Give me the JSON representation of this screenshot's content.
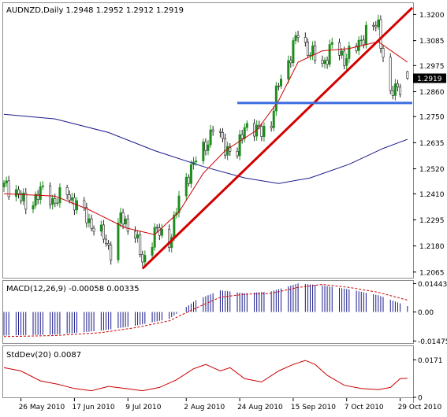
{
  "colors": {
    "frame": "#8c8c8c",
    "bull": "#1e8c1e",
    "bear": "#222222",
    "ma_short": "#cc0000",
    "ma_long": "#1a1a8c",
    "trendline": "#d40000",
    "support": "#3c6ee0",
    "macd_hist": "#1a1a8c",
    "macd_signal": "#cc0000",
    "stddev": "#cc0000",
    "price_box": "#000000",
    "price_box_text": "#ffffff"
  },
  "main_panel": {
    "header": "AUDNZD,Daily  1.2948 1.2952 1.2912 1.2919",
    "current_price": "1.2919",
    "y_ticks": [
      "1.3200",
      "1.3085",
      "1.2975",
      "1.2860",
      "1.2750",
      "1.2635",
      "1.2520",
      "1.2410",
      "1.2295",
      "1.2180",
      "1.2065"
    ]
  },
  "macd_panel": {
    "header": "MACD(12,26,9) -0.00058 0.00335",
    "y_ticks": [
      "0.01443",
      "0.00",
      "-0.01475"
    ]
  },
  "stddev_panel": {
    "header": "StdDev(20) 0.0087",
    "y_ticks": [
      "0.0171",
      "0"
    ]
  },
  "x_axis": {
    "labels": [
      "26 May 2010",
      "17 Jun 2010",
      "9 Jul 2010",
      "2 Aug 2010",
      "24 Aug 2010",
      "15 Sep 2010",
      "7 Oct 2010",
      "29 Oct 2010"
    ]
  },
  "chart_data": {
    "type": "candlestick",
    "symbol": "AUDNZD",
    "timeframe": "Daily",
    "ohlc_last": {
      "open": 1.2948,
      "high": 1.2952,
      "low": 1.2912,
      "close": 1.2919
    },
    "x_range": [
      "2010-05-19",
      "2010-11-03"
    ],
    "ylim": [
      1.204,
      1.325
    ],
    "price_path": [
      [
        "2010-05-19",
        1.244
      ],
      [
        "2010-05-24",
        1.243
      ],
      [
        "2010-05-28",
        1.235
      ],
      [
        "2010-06-03",
        1.242
      ],
      [
        "2010-06-09",
        1.238
      ],
      [
        "2010-06-14",
        1.241
      ],
      [
        "2010-06-18",
        1.236
      ],
      [
        "2010-06-23",
        1.229
      ],
      [
        "2010-06-28",
        1.223
      ],
      [
        "2010-07-02",
        1.216
      ],
      [
        "2010-07-06",
        1.23
      ],
      [
        "2010-07-12",
        1.224
      ],
      [
        "2010-07-15",
        1.21
      ],
      [
        "2010-07-20",
        1.225
      ],
      [
        "2010-07-26",
        1.22
      ],
      [
        "2010-07-30",
        1.238
      ],
      [
        "2010-08-04",
        1.253
      ],
      [
        "2010-08-09",
        1.26
      ],
      [
        "2010-08-13",
        1.27
      ],
      [
        "2010-08-18",
        1.262
      ],
      [
        "2010-08-23",
        1.258
      ],
      [
        "2010-08-26",
        1.272
      ],
      [
        "2010-08-31",
        1.268
      ],
      [
        "2010-09-06",
        1.272
      ],
      [
        "2010-09-09",
        1.29
      ],
      [
        "2010-09-14",
        1.302
      ],
      [
        "2010-09-17",
        1.312
      ],
      [
        "2010-09-22",
        1.303
      ],
      [
        "2010-09-27",
        1.298
      ],
      [
        "2010-10-01",
        1.306
      ],
      [
        "2010-10-06",
        1.301
      ],
      [
        "2010-10-11",
        1.305
      ],
      [
        "2010-10-15",
        1.313
      ],
      [
        "2010-10-20",
        1.315
      ],
      [
        "2010-10-25",
        1.284
      ],
      [
        "2010-10-28",
        1.288
      ],
      [
        "2010-11-01",
        1.292
      ]
    ],
    "ma_short_path": [
      [
        "2010-05-19",
        1.241
      ],
      [
        "2010-06-09",
        1.24
      ],
      [
        "2010-06-23",
        1.234
      ],
      [
        "2010-07-08",
        1.226
      ],
      [
        "2010-07-20",
        1.223
      ],
      [
        "2010-07-30",
        1.233
      ],
      [
        "2010-08-09",
        1.25
      ],
      [
        "2010-08-18",
        1.26
      ],
      [
        "2010-08-31",
        1.269
      ],
      [
        "2010-09-09",
        1.282
      ],
      [
        "2010-09-17",
        1.299
      ],
      [
        "2010-09-27",
        1.304
      ],
      [
        "2010-10-08",
        1.305
      ],
      [
        "2010-10-20",
        1.308
      ],
      [
        "2010-11-01",
        1.299
      ]
    ],
    "ma_long_path": [
      [
        "2010-05-19",
        1.276
      ],
      [
        "2010-06-09",
        1.274
      ],
      [
        "2010-07-01",
        1.268
      ],
      [
        "2010-07-20",
        1.26
      ],
      [
        "2010-08-09",
        1.253
      ],
      [
        "2010-08-26",
        1.248
      ],
      [
        "2010-09-09",
        1.2455
      ],
      [
        "2010-09-22",
        1.248
      ],
      [
        "2010-10-08",
        1.254
      ],
      [
        "2010-10-22",
        1.261
      ],
      [
        "2010-11-01",
        1.265
      ]
    ],
    "trendline": [
      [
        "2010-07-15",
        1.208
      ],
      [
        "2010-11-03",
        1.323
      ]
    ],
    "support_line": {
      "level": 1.281,
      "from": "2010-08-23",
      "to": "2010-11-03"
    },
    "macd_histogram_path": [
      [
        "2010-05-19",
        -0.012
      ],
      [
        "2010-06-09",
        -0.0115
      ],
      [
        "2010-06-28",
        -0.0095
      ],
      [
        "2010-07-12",
        -0.007
      ],
      [
        "2010-07-26",
        -0.0035
      ],
      [
        "2010-08-06",
        0.006
      ],
      [
        "2010-08-16",
        0.011
      ],
      [
        "2010-08-26",
        0.0095
      ],
      [
        "2010-09-06",
        0.0105
      ],
      [
        "2010-09-17",
        0.0145
      ],
      [
        "2010-09-27",
        0.0135
      ],
      [
        "2010-10-08",
        0.0115
      ],
      [
        "2010-10-20",
        0.0085
      ],
      [
        "2010-11-01",
        0.003
      ]
    ],
    "macd_signal_path": [
      [
        "2010-05-19",
        -0.0125
      ],
      [
        "2010-06-09",
        -0.012
      ],
      [
        "2010-06-28",
        -0.0105
      ],
      [
        "2010-07-12",
        -0.008
      ],
      [
        "2010-07-26",
        -0.0045
      ],
      [
        "2010-08-06",
        0.002
      ],
      [
        "2010-08-16",
        0.0075
      ],
      [
        "2010-08-26",
        0.009
      ],
      [
        "2010-09-06",
        0.0095
      ],
      [
        "2010-09-17",
        0.0125
      ],
      [
        "2010-09-27",
        0.014
      ],
      [
        "2010-10-08",
        0.0125
      ],
      [
        "2010-10-20",
        0.01
      ],
      [
        "2010-11-01",
        0.006
      ]
    ],
    "stddev_path": [
      [
        "2010-05-19",
        0.0135
      ],
      [
        "2010-05-26",
        0.012
      ],
      [
        "2010-06-03",
        0.0075
      ],
      [
        "2010-06-10",
        0.006
      ],
      [
        "2010-06-17",
        0.004
      ],
      [
        "2010-06-24",
        0.003
      ],
      [
        "2010-07-01",
        0.005
      ],
      [
        "2010-07-08",
        0.004
      ],
      [
        "2010-07-15",
        0.003
      ],
      [
        "2010-07-22",
        0.0045
      ],
      [
        "2010-07-29",
        0.008
      ],
      [
        "2010-08-05",
        0.013
      ],
      [
        "2010-08-10",
        0.015
      ],
      [
        "2010-08-16",
        0.012
      ],
      [
        "2010-08-20",
        0.0135
      ],
      [
        "2010-08-26",
        0.0085
      ],
      [
        "2010-09-02",
        0.007
      ],
      [
        "2010-09-09",
        0.012
      ],
      [
        "2010-09-15",
        0.015
      ],
      [
        "2010-09-20",
        0.0168
      ],
      [
        "2010-09-24",
        0.015
      ],
      [
        "2010-09-29",
        0.01
      ],
      [
        "2010-10-06",
        0.0055
      ],
      [
        "2010-10-13",
        0.004
      ],
      [
        "2010-10-20",
        0.0035
      ],
      [
        "2010-10-25",
        0.0045
      ],
      [
        "2010-10-29",
        0.0085
      ],
      [
        "2010-11-01",
        0.0087
      ]
    ],
    "macd_ylim": [
      -0.0158,
      0.0158
    ],
    "stddev_ylim": [
      0,
      0.019
    ]
  }
}
